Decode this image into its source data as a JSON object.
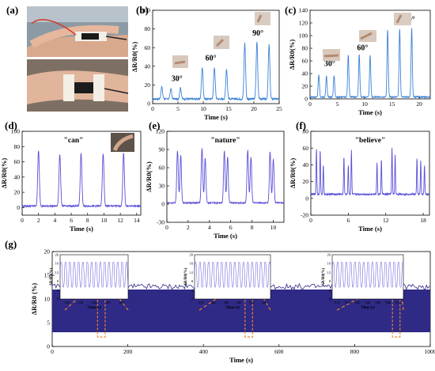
{
  "panels": {
    "a": {
      "label": "(a)"
    },
    "b": {
      "label": "(b)"
    },
    "c": {
      "label": "(c)"
    },
    "d": {
      "label": "(d)"
    },
    "e": {
      "label": "(e)"
    },
    "f": {
      "label": "(f)"
    },
    "g": {
      "label": "(g)"
    }
  },
  "colors": {
    "trace_b": "#3b82d6",
    "trace_c": "#3b82d6",
    "trace_def": "#5a4fd8",
    "trace_g": "#2e2a86",
    "highlight": "#f0822c"
  },
  "chart_data": [
    {
      "id": "b",
      "type": "line",
      "xlabel": "Time (s)",
      "ylabel": "ΔR/R0(%)",
      "xlim": [
        0,
        25
      ],
      "ylim": [
        0,
        100
      ],
      "xticks": [
        0,
        5,
        10,
        15,
        20,
        25
      ],
      "yticks": [
        0,
        20,
        40,
        60,
        80,
        100
      ],
      "annotations": [
        {
          "text": "30°",
          "x": 4.8,
          "y": 24
        },
        {
          "text": "60°",
          "x": 11.5,
          "y": 46
        },
        {
          "text": "90°",
          "x": 20.8,
          "y": 73
        }
      ],
      "peaks": [
        {
          "x": 1.8,
          "y": 18
        },
        {
          "x": 3.6,
          "y": 16
        },
        {
          "x": 5.5,
          "y": 17
        },
        {
          "x": 9.8,
          "y": 39
        },
        {
          "x": 12.2,
          "y": 39
        },
        {
          "x": 14.6,
          "y": 37
        },
        {
          "x": 18.2,
          "y": 65
        },
        {
          "x": 20.6,
          "y": 66
        },
        {
          "x": 23.0,
          "y": 63
        }
      ],
      "baseline": 5
    },
    {
      "id": "c",
      "type": "line",
      "xlabel": "Time (s)",
      "ylabel": "ΔR/R0(%)",
      "xlim": [
        0,
        22
      ],
      "ylim": [
        0,
        140
      ],
      "xticks": [
        0,
        5,
        10,
        15,
        20
      ],
      "yticks": [
        0,
        20,
        40,
        60,
        80,
        100,
        120,
        140
      ],
      "annotations": [
        {
          "text": "30°",
          "x": 3.6,
          "y": 52
        },
        {
          "text": "60°",
          "x": 9.6,
          "y": 77
        },
        {
          "text": "90°",
          "x": 18.2,
          "y": 122
        }
      ],
      "peaks": [
        {
          "x": 1.6,
          "y": 38
        },
        {
          "x": 3.0,
          "y": 36
        },
        {
          "x": 4.4,
          "y": 37
        },
        {
          "x": 7.0,
          "y": 70
        },
        {
          "x": 9.0,
          "y": 70
        },
        {
          "x": 11.0,
          "y": 69
        },
        {
          "x": 14.2,
          "y": 110
        },
        {
          "x": 16.4,
          "y": 111
        },
        {
          "x": 18.6,
          "y": 112
        }
      ],
      "baseline": 3
    },
    {
      "id": "d",
      "type": "line",
      "word": "\"can\"",
      "xlabel": "Time (s)",
      "ylabel": "ΔR/R0(%)",
      "xlim": [
        0,
        14.5
      ],
      "ylim": [
        -10,
        100
      ],
      "xticks": [
        0,
        2,
        4,
        6,
        8,
        10,
        12,
        14
      ],
      "yticks": [
        0,
        20,
        40,
        60,
        80,
        100
      ],
      "peaks": [
        {
          "x": 2.0,
          "y": 75
        },
        {
          "x": 4.6,
          "y": 70
        },
        {
          "x": 7.2,
          "y": 71
        },
        {
          "x": 9.9,
          "y": 71
        },
        {
          "x": 12.4,
          "y": 71
        }
      ],
      "baseline": 2
    },
    {
      "id": "e",
      "type": "line",
      "word": "\"nature\"",
      "xlabel": "Time (s)",
      "ylabel": "ΔR/R0(%)",
      "xlim": [
        0,
        11
      ],
      "ylim": [
        -30,
        120
      ],
      "xticks": [
        0,
        2,
        4,
        6,
        8,
        10
      ],
      "yticks": [
        -30,
        0,
        30,
        60,
        90,
        120
      ],
      "peaks": [
        {
          "x": 1.0,
          "y": 88
        },
        {
          "x": 1.3,
          "y": 80
        },
        {
          "x": 3.3,
          "y": 92
        },
        {
          "x": 3.6,
          "y": 76
        },
        {
          "x": 5.4,
          "y": 88
        },
        {
          "x": 5.7,
          "y": 78
        },
        {
          "x": 7.6,
          "y": 89
        },
        {
          "x": 7.9,
          "y": 77
        },
        {
          "x": 9.7,
          "y": 87
        },
        {
          "x": 10.0,
          "y": 74
        }
      ],
      "baseline": 2
    },
    {
      "id": "f",
      "type": "line",
      "word": "\"believe\"",
      "xlabel": "Time (s)",
      "ylabel": "ΔR/R0(%)",
      "xlim": [
        0,
        19
      ],
      "ylim": [
        -20,
        80
      ],
      "xticks": [
        0,
        6,
        12,
        18
      ],
      "yticks": [
        -20,
        0,
        20,
        40,
        60,
        80
      ],
      "peaks": [
        {
          "x": 0.9,
          "y": 60
        },
        {
          "x": 1.5,
          "y": 58
        },
        {
          "x": 2.0,
          "y": 40
        },
        {
          "x": 5.3,
          "y": 50
        },
        {
          "x": 6.0,
          "y": 40
        },
        {
          "x": 6.5,
          "y": 57
        },
        {
          "x": 10.6,
          "y": 42
        },
        {
          "x": 11.3,
          "y": 47
        },
        {
          "x": 13.0,
          "y": 60
        },
        {
          "x": 13.5,
          "y": 52
        },
        {
          "x": 17.0,
          "y": 48
        },
        {
          "x": 17.6,
          "y": 45
        },
        {
          "x": 18.2,
          "y": 40
        }
      ],
      "baseline": 5
    },
    {
      "id": "g",
      "type": "area",
      "xlabel": "Time (s)",
      "ylabel": "ΔR/R0 (%)",
      "xlim": [
        0,
        1000
      ],
      "ylim": [
        0,
        20
      ],
      "xticks": [
        0,
        200,
        400,
        600,
        800,
        1000
      ],
      "yticks": [
        0,
        5,
        10,
        15,
        20
      ],
      "band_low": 3,
      "band_high": 12,
      "highlights": [
        [
          120,
          140
        ],
        [
          510,
          530
        ],
        [
          900,
          920
        ]
      ],
      "insets": [
        {
          "xlim": [
            115,
            165
          ],
          "xticks": [
            120,
            130,
            140,
            150,
            160
          ],
          "yticks": [
            0,
            4,
            8,
            12,
            16,
            20
          ],
          "ylabel": "ΔR/R0(%)",
          "xlabel": "Time (s)"
        },
        {
          "xlim": [
            465,
            525
          ],
          "xticks": [
            470,
            480,
            490,
            500,
            510,
            520
          ],
          "yticks": [
            0,
            4,
            8,
            12,
            16,
            20
          ],
          "ylabel": "ΔR/R0(%)",
          "xlabel": "Time (s)"
        },
        {
          "xlim": [
            905,
            975
          ],
          "xticks": [
            910,
            920,
            930,
            940,
            950,
            960,
            970
          ],
          "yticks": [
            0,
            4,
            8,
            12,
            16,
            20
          ],
          "ylabel": "ΔR/R0(%)",
          "xlabel": "Time (s)"
        }
      ]
    }
  ]
}
